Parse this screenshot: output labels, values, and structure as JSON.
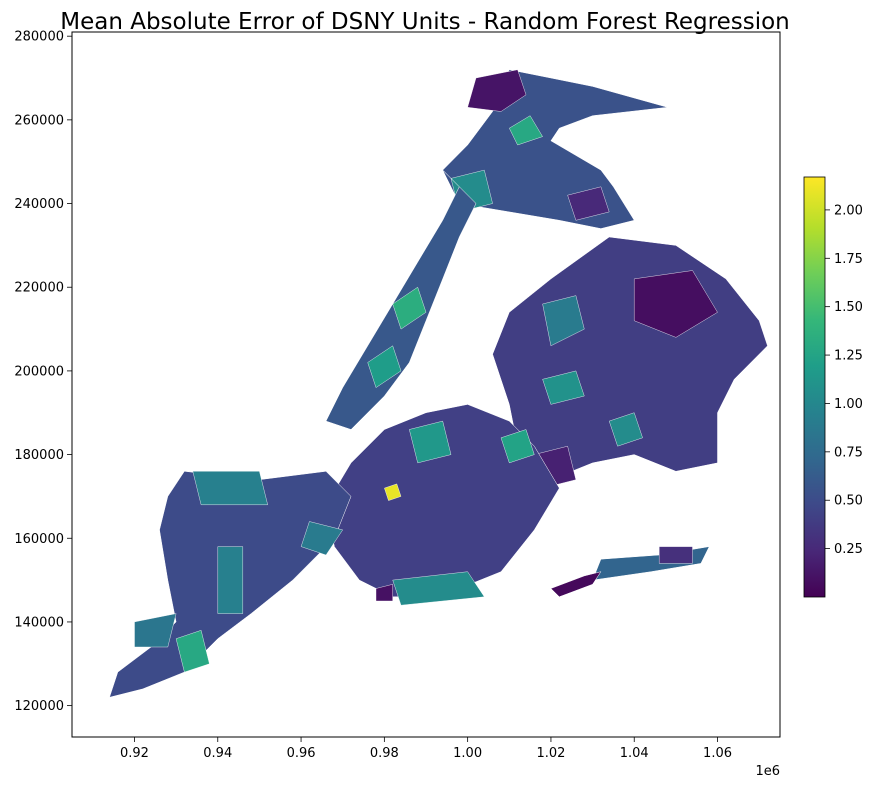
{
  "title": "Mean Absolute Error of DSNY Units - Random Forest Regression",
  "x_axis": {
    "ticks": [
      {
        "value": 0.92,
        "label": "0.92"
      },
      {
        "value": 0.94,
        "label": "0.94"
      },
      {
        "value": 0.96,
        "label": "0.96"
      },
      {
        "value": 0.98,
        "label": "0.98"
      },
      {
        "value": 1.0,
        "label": "1.00"
      },
      {
        "value": 1.02,
        "label": "1.02"
      },
      {
        "value": 1.04,
        "label": "1.04"
      },
      {
        "value": 1.06,
        "label": "1.06"
      }
    ],
    "range": [
      0.905,
      1.075
    ],
    "offset_label": "1e6"
  },
  "y_axis": {
    "ticks": [
      {
        "value": 120000,
        "label": "120000"
      },
      {
        "value": 140000,
        "label": "140000"
      },
      {
        "value": 160000,
        "label": "160000"
      },
      {
        "value": 180000,
        "label": "180000"
      },
      {
        "value": 200000,
        "label": "200000"
      },
      {
        "value": 220000,
        "label": "220000"
      },
      {
        "value": 240000,
        "label": "240000"
      },
      {
        "value": 260000,
        "label": "260000"
      },
      {
        "value": 280000,
        "label": "280000"
      }
    ],
    "range": [
      112500,
      281000
    ]
  },
  "colorbar": {
    "colormap": "viridis",
    "range": [
      0.0,
      2.17
    ],
    "ticks": [
      {
        "value": 0.25,
        "label": "0.25"
      },
      {
        "value": 0.5,
        "label": "0.50"
      },
      {
        "value": 0.75,
        "label": "0.75"
      },
      {
        "value": 1.0,
        "label": "1.00"
      },
      {
        "value": 1.25,
        "label": "1.25"
      },
      {
        "value": 1.5,
        "label": "1.50"
      },
      {
        "value": 1.75,
        "label": "1.75"
      },
      {
        "value": 2.0,
        "label": "2.00"
      }
    ]
  },
  "regions": [
    {
      "id": "bronx",
      "mae": 0.55,
      "outline": [
        [
          1.01,
          272000
        ],
        [
          1.02,
          270000
        ],
        [
          1.03,
          268000
        ],
        [
          1.048,
          263000
        ],
        [
          1.03,
          261000
        ],
        [
          1.022,
          258000
        ],
        [
          1.02,
          255000
        ],
        [
          1.032,
          248000
        ],
        [
          1.035,
          244000
        ],
        [
          1.04,
          236000
        ],
        [
          1.032,
          234000
        ],
        [
          1.022,
          236000
        ],
        [
          1.01,
          238000
        ],
        [
          0.998,
          240000
        ],
        [
          0.994,
          248000
        ],
        [
          1.0,
          254000
        ],
        [
          1.006,
          262000
        ]
      ],
      "patches": [
        {
          "mae": 0.12,
          "outline": [
            [
              1.002,
              270000
            ],
            [
              1.012,
              272000
            ],
            [
              1.014,
              266000
            ],
            [
              1.008,
              262000
            ],
            [
              1.0,
              263000
            ]
          ]
        },
        {
          "mae": 1.3,
          "outline": [
            [
              1.01,
              258000
            ],
            [
              1.015,
              261000
            ],
            [
              1.018,
              256000
            ],
            [
              1.012,
              254000
            ]
          ]
        },
        {
          "mae": 1.05,
          "outline": [
            [
              0.996,
              246000
            ],
            [
              1.004,
              248000
            ],
            [
              1.006,
              240000
            ],
            [
              0.998,
              238000
            ]
          ]
        },
        {
          "mae": 0.25,
          "outline": [
            [
              1.024,
              242000
            ],
            [
              1.032,
              244000
            ],
            [
              1.034,
              238000
            ],
            [
              1.026,
              236000
            ]
          ]
        }
      ]
    },
    {
      "id": "manhattan",
      "mae": 0.6,
      "outline": [
        [
          0.994,
          248000
        ],
        [
          0.998,
          244000
        ],
        [
          0.994,
          236000
        ],
        [
          0.988,
          226000
        ],
        [
          0.982,
          216000
        ],
        [
          0.976,
          206000
        ],
        [
          0.97,
          196000
        ],
        [
          0.966,
          188000
        ],
        [
          0.972,
          186000
        ],
        [
          0.98,
          194000
        ],
        [
          0.986,
          202000
        ],
        [
          0.99,
          212000
        ],
        [
          0.994,
          222000
        ],
        [
          0.998,
          232000
        ],
        [
          1.002,
          240000
        ]
      ],
      "patches": [
        {
          "mae": 1.35,
          "outline": [
            [
              0.982,
              216000
            ],
            [
              0.988,
              220000
            ],
            [
              0.99,
              214000
            ],
            [
              0.984,
              210000
            ]
          ]
        },
        {
          "mae": 1.2,
          "outline": [
            [
              0.976,
              202000
            ],
            [
              0.982,
              206000
            ],
            [
              0.984,
              200000
            ],
            [
              0.978,
              196000
            ]
          ]
        }
      ]
    },
    {
      "id": "queens",
      "mae": 0.4,
      "outline": [
        [
          1.034,
          232000
        ],
        [
          1.05,
          230000
        ],
        [
          1.062,
          222000
        ],
        [
          1.07,
          212000
        ],
        [
          1.072,
          206000
        ],
        [
          1.064,
          198000
        ],
        [
          1.06,
          190000
        ],
        [
          1.06,
          178000
        ],
        [
          1.05,
          176000
        ],
        [
          1.04,
          180000
        ],
        [
          1.03,
          178000
        ],
        [
          1.02,
          174000
        ],
        [
          1.012,
          182000
        ],
        [
          1.01,
          192000
        ],
        [
          1.006,
          204000
        ],
        [
          1.01,
          214000
        ],
        [
          1.02,
          222000
        ]
      ],
      "patches": [
        {
          "mae": 0.08,
          "outline": [
            [
              1.04,
              222000
            ],
            [
              1.054,
              224000
            ],
            [
              1.06,
              214000
            ],
            [
              1.05,
              208000
            ],
            [
              1.04,
              212000
            ]
          ]
        },
        {
          "mae": 0.9,
          "outline": [
            [
              1.018,
              216000
            ],
            [
              1.026,
              218000
            ],
            [
              1.028,
              210000
            ],
            [
              1.02,
              206000
            ]
          ]
        },
        {
          "mae": 1.1,
          "outline": [
            [
              1.018,
              198000
            ],
            [
              1.026,
              200000
            ],
            [
              1.028,
              194000
            ],
            [
              1.02,
              192000
            ]
          ]
        },
        {
          "mae": 1.05,
          "outline": [
            [
              1.034,
              188000
            ],
            [
              1.04,
              190000
            ],
            [
              1.042,
              184000
            ],
            [
              1.036,
              182000
            ]
          ]
        },
        {
          "mae": 0.2,
          "outline": [
            [
              1.016,
              180000
            ],
            [
              1.024,
              182000
            ],
            [
              1.026,
              174000
            ],
            [
              1.018,
              172000
            ]
          ]
        }
      ]
    },
    {
      "id": "brooklyn",
      "mae": 0.42,
      "outline": [
        [
          0.98,
          186000
        ],
        [
          0.99,
          190000
        ],
        [
          1.0,
          192000
        ],
        [
          1.01,
          188000
        ],
        [
          1.016,
          182000
        ],
        [
          1.022,
          172000
        ],
        [
          1.016,
          162000
        ],
        [
          1.008,
          152000
        ],
        [
          0.998,
          148000
        ],
        [
          0.99,
          146000
        ],
        [
          0.982,
          146000
        ],
        [
          0.974,
          150000
        ],
        [
          0.968,
          158000
        ],
        [
          0.966,
          168000
        ],
        [
          0.972,
          178000
        ]
      ],
      "patches": [
        {
          "mae": 1.15,
          "outline": [
            [
              0.986,
              186000
            ],
            [
              0.994,
              188000
            ],
            [
              0.996,
              180000
            ],
            [
              0.988,
              178000
            ]
          ]
        },
        {
          "mae": 1.25,
          "outline": [
            [
              1.008,
              184000
            ],
            [
              1.014,
              186000
            ],
            [
              1.016,
              180000
            ],
            [
              1.01,
              178000
            ]
          ]
        },
        {
          "mae": 2.1,
          "outline": [
            [
              0.98,
              172000
            ],
            [
              0.983,
              173000
            ],
            [
              0.984,
              170000
            ],
            [
              0.981,
              169000
            ]
          ]
        },
        {
          "mae": 1.05,
          "outline": [
            [
              0.982,
              150000
            ],
            [
              1.0,
              152000
            ],
            [
              1.004,
              146000
            ],
            [
              0.984,
              144000
            ]
          ]
        },
        {
          "mae": 0.1,
          "outline": [
            [
              0.978,
              148000
            ],
            [
              0.982,
              149000
            ],
            [
              0.982,
              145000
            ],
            [
              0.978,
              145000
            ]
          ]
        }
      ]
    },
    {
      "id": "staten-island",
      "mae": 0.5,
      "outline": [
        [
          0.932,
          176000
        ],
        [
          0.95,
          174000
        ],
        [
          0.966,
          176000
        ],
        [
          0.972,
          170000
        ],
        [
          0.968,
          160000
        ],
        [
          0.958,
          150000
        ],
        [
          0.948,
          142000
        ],
        [
          0.94,
          136000
        ],
        [
          0.932,
          128000
        ],
        [
          0.922,
          124000
        ],
        [
          0.914,
          122000
        ],
        [
          0.916,
          128000
        ],
        [
          0.924,
          134000
        ],
        [
          0.93,
          140000
        ],
        [
          0.928,
          150000
        ],
        [
          0.926,
          162000
        ],
        [
          0.928,
          170000
        ]
      ],
      "patches": [
        {
          "mae": 0.95,
          "outline": [
            [
              0.934,
              176000
            ],
            [
              0.95,
              176000
            ],
            [
              0.952,
              168000
            ],
            [
              0.936,
              168000
            ]
          ]
        },
        {
          "mae": 0.95,
          "outline": [
            [
              0.94,
              158000
            ],
            [
              0.946,
              158000
            ],
            [
              0.946,
              142000
            ],
            [
              0.94,
              142000
            ]
          ]
        },
        {
          "mae": 1.3,
          "outline": [
            [
              0.93,
              136000
            ],
            [
              0.936,
              138000
            ],
            [
              0.938,
              130000
            ],
            [
              0.932,
              128000
            ]
          ]
        },
        {
          "mae": 0.9,
          "outline": [
            [
              0.962,
              164000
            ],
            [
              0.97,
              162000
            ],
            [
              0.966,
              156000
            ],
            [
              0.96,
              158000
            ]
          ]
        },
        {
          "mae": 0.85,
          "outline": [
            [
              0.92,
              140000
            ],
            [
              0.93,
              142000
            ],
            [
              0.928,
              134000
            ],
            [
              0.92,
              134000
            ]
          ]
        }
      ]
    },
    {
      "id": "rockaway",
      "mae": 0.7,
      "outline": [
        [
          1.032,
          155000
        ],
        [
          1.046,
          156000
        ],
        [
          1.058,
          158000
        ],
        [
          1.056,
          154000
        ],
        [
          1.044,
          152000
        ],
        [
          1.03,
          150000
        ]
      ],
      "patches": [
        {
          "mae": 0.3,
          "outline": [
            [
              1.046,
              158000
            ],
            [
              1.054,
              158000
            ],
            [
              1.054,
              154000
            ],
            [
              1.046,
              154000
            ]
          ]
        }
      ]
    },
    {
      "id": "broad-channel",
      "mae": 0.05,
      "outline": [
        [
          1.02,
          148000
        ],
        [
          1.028,
          151000
        ],
        [
          1.032,
          152000
        ],
        [
          1.03,
          149000
        ],
        [
          1.022,
          146000
        ]
      ],
      "patches": []
    }
  ]
}
